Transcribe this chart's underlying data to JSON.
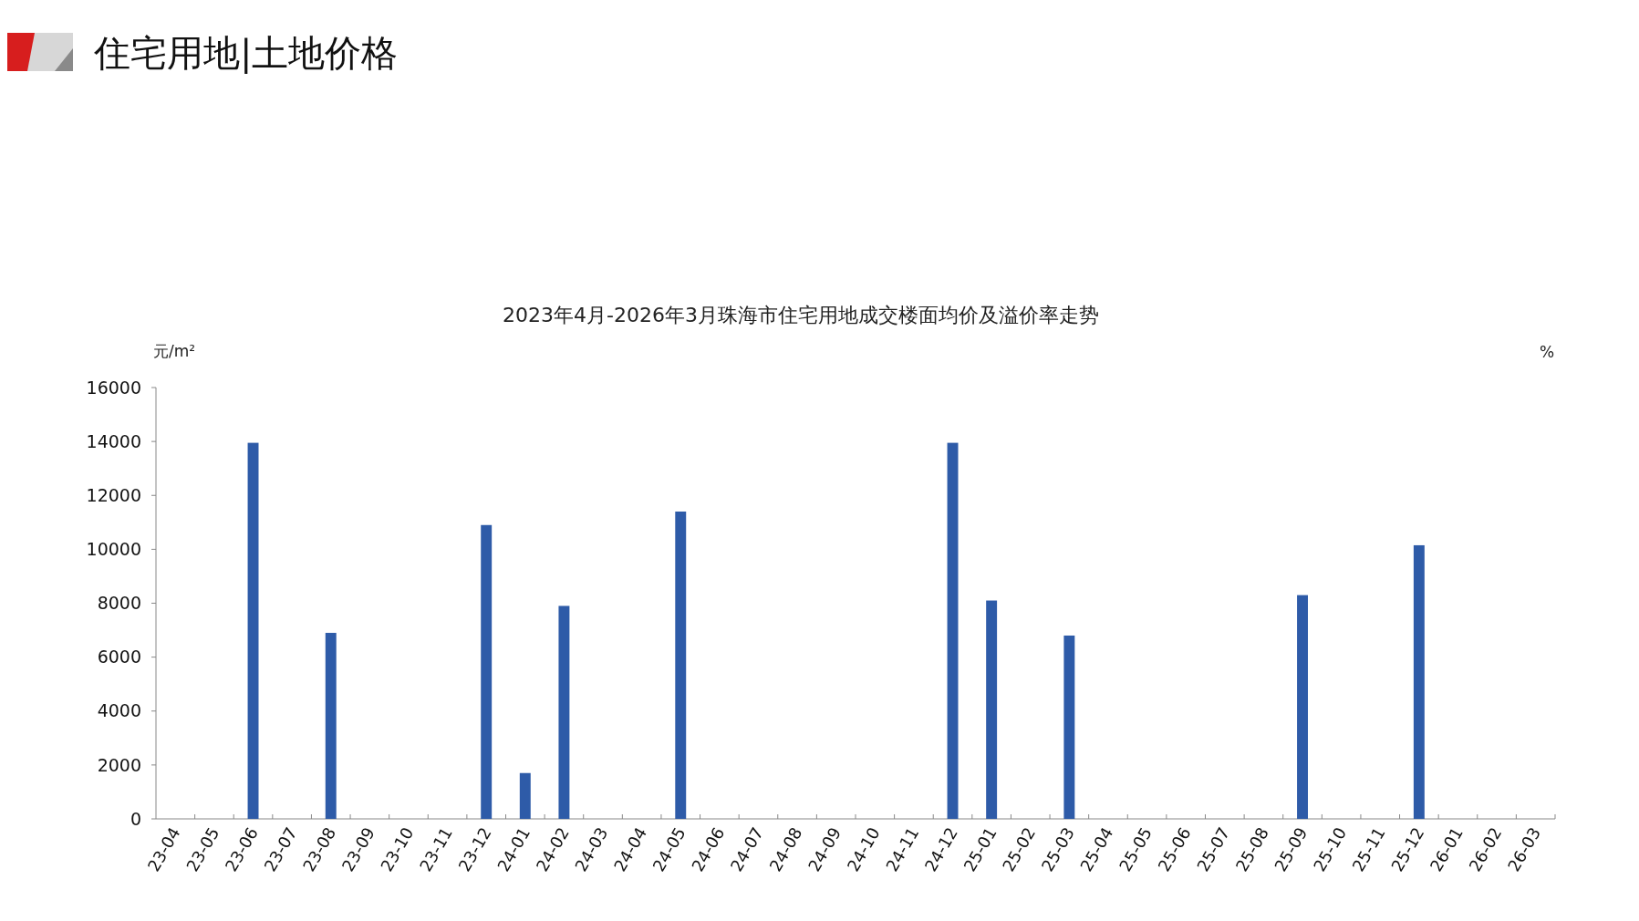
{
  "chart_data": {
    "type": "bar",
    "title": "住宅用地|土地价格",
    "subtitle": "2023年4月-2026年3月珠海市住宅用地成交楼面均价及溢价率走势",
    "ylabel": "元/m²",
    "y2label": "%",
    "categories": [
      "23-04",
      "23-05",
      "23-06",
      "23-07",
      "23-08",
      "23-09",
      "23-10",
      "23-11",
      "23-12",
      "24-01",
      "24-02",
      "24-03",
      "24-04",
      "24-05",
      "24-06",
      "24-07",
      "24-08",
      "24-09",
      "24-10",
      "24-11",
      "24-12",
      "25-01",
      "25-02",
      "25-03",
      "25-04",
      "25-05",
      "25-06",
      "25-07",
      "25-08",
      "25-09",
      "25-10",
      "25-11",
      "25-12",
      "26-01",
      "26-02",
      "26-03"
    ],
    "values": [
      null,
      null,
      13950,
      null,
      6900,
      null,
      null,
      null,
      10900,
      1700,
      7900,
      null,
      null,
      11400,
      null,
      null,
      null,
      null,
      null,
      null,
      13950,
      8100,
      null,
      6800,
      null,
      null,
      null,
      null,
      null,
      8300,
      null,
      null,
      10150,
      null,
      null,
      null
    ],
    "color": "#2e5ba8",
    "ylim": [
      0,
      16000
    ],
    "yticks": [
      0,
      2000,
      4000,
      6000,
      8000,
      10000,
      12000,
      14000,
      16000
    ],
    "grid": false
  }
}
